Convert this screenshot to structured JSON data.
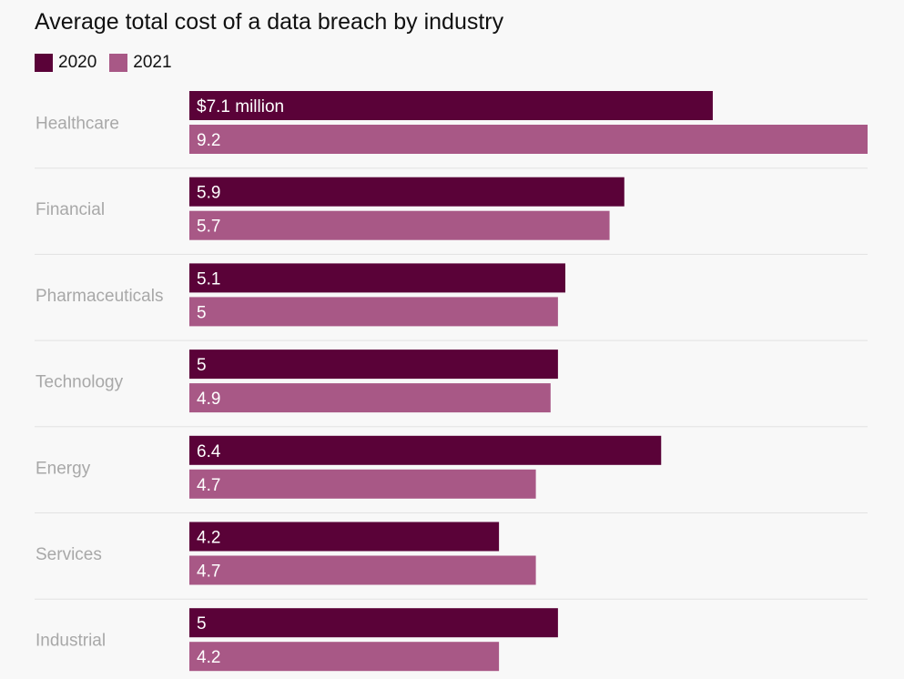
{
  "chart_data": {
    "type": "bar",
    "orientation": "horizontal",
    "title": "Average total cost of a data breach by industry",
    "categories": [
      "Healthcare",
      "Financial",
      "Pharmaceuticals",
      "Technology",
      "Energy",
      "Services",
      "Industrial"
    ],
    "series": [
      {
        "name": "2020",
        "color": "#5a0238",
        "values": [
          7.1,
          5.9,
          5.1,
          5,
          6.4,
          4.2,
          5
        ],
        "labels": [
          "$7.1 million",
          "5.9",
          "5.1",
          "5",
          "6.4",
          "4.2",
          "5"
        ]
      },
      {
        "name": "2021",
        "color": "#a85886",
        "values": [
          9.2,
          5.7,
          5,
          4.9,
          4.7,
          4.7,
          4.2
        ],
        "labels": [
          "9.2",
          "5.7",
          "5",
          "4.9",
          "4.7",
          "4.7",
          "4.2"
        ]
      }
    ],
    "xlim": [
      0,
      9.2
    ],
    "legend_position": "top-left",
    "grid": false
  }
}
